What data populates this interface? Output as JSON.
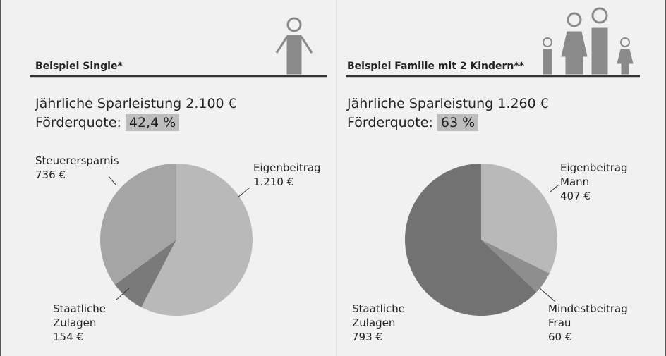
{
  "chart_data": [
    {
      "type": "pie",
      "title": "Beispiel Single*",
      "subtitle": "Jährliche Sparleistung 2.100 €",
      "quota_label": "Förderquote:",
      "quota": "42,4 %",
      "categories": [
        "Eigenbeitrag",
        "Staatliche\nZulagen",
        "Steuerersparnis"
      ],
      "values": [
        1210,
        154,
        736
      ],
      "value_labels": [
        "1.210 €",
        "154 €",
        "736 €"
      ],
      "colors": [
        "#b9b9b9",
        "#7a7a7a",
        "#a5a5a5"
      ]
    },
    {
      "type": "pie",
      "title": "Beispiel Familie mit 2 Kindern**",
      "subtitle": "Jährliche Sparleistung 1.260 €",
      "quota_label": "Förderquote:",
      "quota": "63 %",
      "categories": [
        "Eigenbeitrag\nMann",
        "Mindestbeitrag\nFrau",
        "Staatliche\nZulagen"
      ],
      "values": [
        407,
        60,
        793
      ],
      "value_labels": [
        "407 €",
        "60 €",
        "793 €"
      ],
      "colors": [
        "#b9b9b9",
        "#8e8e8e",
        "#727272"
      ]
    }
  ]
}
